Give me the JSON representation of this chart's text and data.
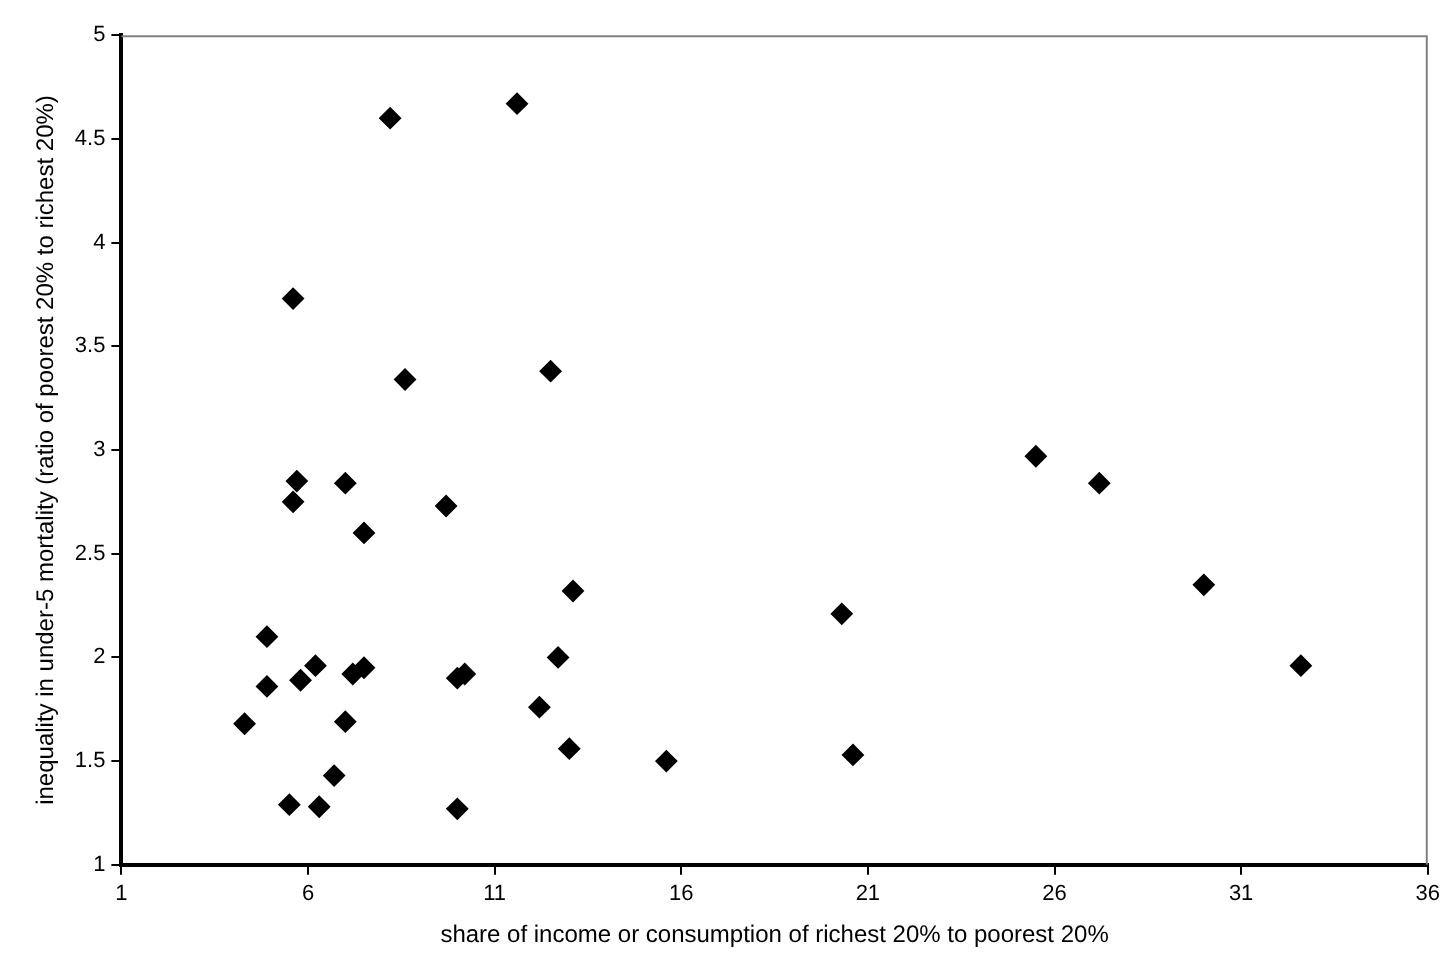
{
  "chart_data": {
    "type": "scatter",
    "xlabel": "share of income or consumption of richest 20% to poorest 20%",
    "ylabel": "inequality in under-5 mortality (ratio of poorest 20% to richest 20%)",
    "x": [
      8.2,
      11.6,
      5.6,
      8.6,
      12.5,
      5.7,
      7.0,
      5.6,
      9.7,
      7.5,
      13.1,
      4.9,
      12.7,
      6.2,
      7.5,
      7.2,
      10.2,
      10.0,
      5.8,
      4.9,
      12.2,
      4.3,
      7.0,
      13.0,
      15.6,
      6.7,
      5.5,
      6.3,
      10.0,
      25.5,
      27.2,
      30.0,
      32.6,
      20.3,
      20.6
    ],
    "series": [
      {
        "color": "#000000",
        "values": [
          4.6,
          4.67,
          3.73,
          3.34,
          3.38,
          2.85,
          2.84,
          2.75,
          2.73,
          2.6,
          2.32,
          2.1,
          2.0,
          1.96,
          1.95,
          1.92,
          1.92,
          1.9,
          1.89,
          1.86,
          1.76,
          1.68,
          1.69,
          1.56,
          1.5,
          1.43,
          1.29,
          1.28,
          1.27,
          2.97,
          2.84,
          2.35,
          1.96,
          2.21,
          1.53
        ]
      }
    ],
    "xlim": [
      1,
      36
    ],
    "xticks": [
      1,
      6,
      11,
      16,
      21,
      26,
      31,
      36
    ],
    "ylim": [
      1,
      5
    ],
    "yticks": [
      1,
      1.5,
      2,
      2.5,
      3,
      3.5,
      4,
      4.5,
      5
    ],
    "grid": false,
    "legend": false,
    "marker": "diamond"
  }
}
